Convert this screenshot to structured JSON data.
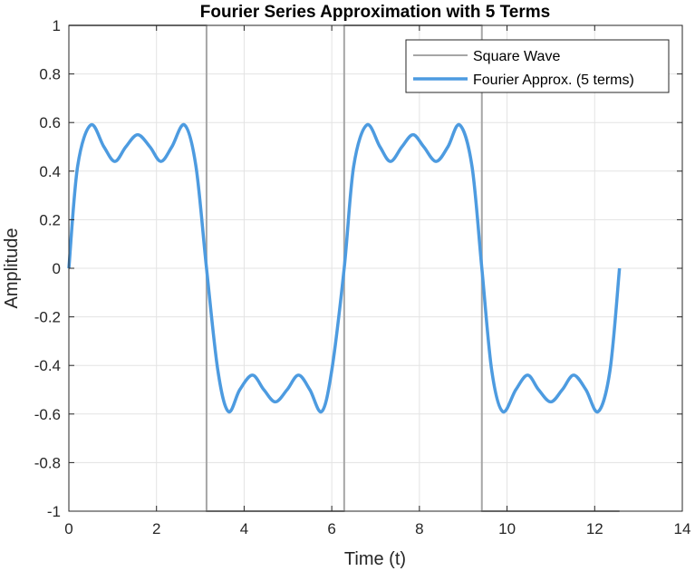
{
  "chart_data": {
    "type": "line",
    "title": "Fourier Series Approximation with 5 Terms",
    "xlabel": "Time (t)",
    "ylabel": "Amplitude",
    "xlim": [
      0,
      14
    ],
    "ylim": [
      -1,
      1
    ],
    "xticks": [
      0,
      2,
      4,
      6,
      8,
      10,
      12,
      14
    ],
    "xtick_labels": [
      "0",
      "2",
      "4",
      "6",
      "8",
      "10",
      "12",
      "14"
    ],
    "yticks": [
      -1,
      -0.8,
      -0.6,
      -0.4,
      -0.2,
      0,
      0.2,
      0.4,
      0.6,
      0.8,
      1
    ],
    "ytick_labels": [
      "-1",
      "-0.8",
      "-0.6",
      "-0.4",
      "-0.2",
      "0",
      "0.2",
      "0.4",
      "0.6",
      "0.8",
      "1"
    ],
    "grid": true,
    "legend_position": "top-right",
    "series": [
      {
        "name": "Square Wave",
        "color": "#a6a6a6",
        "x": [
          0,
          3.1416,
          3.1416,
          6.2832,
          6.2832,
          9.4248,
          9.4248,
          12.5664
        ],
        "y": [
          1,
          1,
          -1,
          -1,
          1,
          1,
          -1,
          -1
        ]
      },
      {
        "name": "Fourier Approx. (5 terms)",
        "color": "#4d9be0",
        "x": [
          0,
          0.2,
          0.5,
          0.8,
          1.05,
          1.3,
          1.5708,
          1.85,
          2.1,
          2.35,
          2.64,
          2.9,
          3.1416,
          3.4,
          3.64,
          3.9,
          4.19,
          4.45,
          4.712,
          4.98,
          5.24,
          5.5,
          5.77,
          6.0,
          6.2832,
          6.5,
          6.8,
          7.1,
          7.34,
          7.6,
          7.854,
          8.1,
          8.38,
          8.65,
          8.92,
          9.2,
          9.4248,
          9.65,
          9.9,
          10.2,
          10.47,
          10.72,
          10.996,
          11.26,
          11.52,
          11.8,
          12.08,
          12.35,
          12.5664
        ],
        "y": [
          0,
          0.42,
          0.59,
          0.5,
          0.44,
          0.5,
          0.55,
          0.5,
          0.44,
          0.5,
          0.59,
          0.42,
          0,
          -0.42,
          -0.59,
          -0.5,
          -0.44,
          -0.5,
          -0.55,
          -0.5,
          -0.44,
          -0.5,
          -0.59,
          -0.42,
          0,
          0.42,
          0.59,
          0.5,
          0.44,
          0.5,
          0.55,
          0.5,
          0.44,
          0.5,
          0.59,
          0.42,
          0,
          -0.42,
          -0.59,
          -0.5,
          -0.44,
          -0.5,
          -0.55,
          -0.5,
          -0.44,
          -0.5,
          -0.59,
          -0.42,
          0
        ]
      }
    ]
  }
}
